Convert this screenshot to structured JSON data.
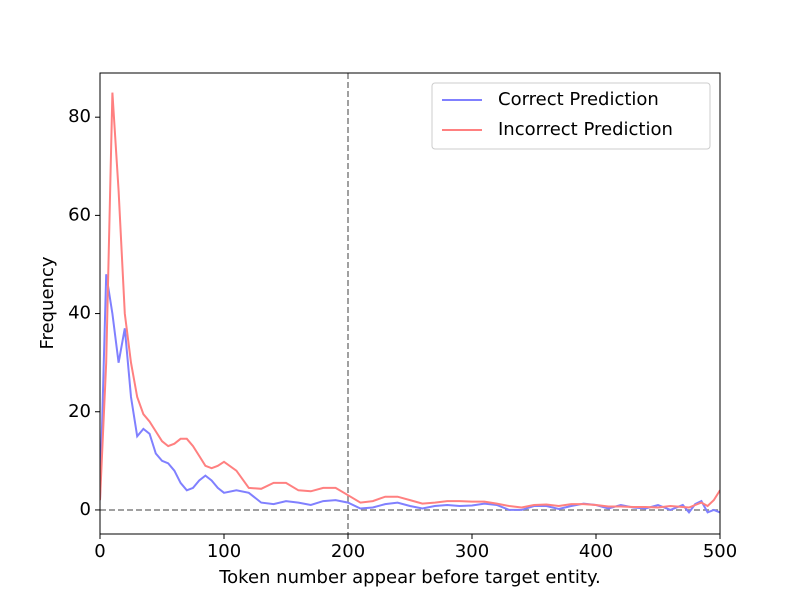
{
  "chart_data": {
    "type": "line",
    "x_label": "Token number appear before target entity.",
    "y_label": "Frequency",
    "x": [
      0,
      5,
      10,
      15,
      20,
      25,
      30,
      35,
      40,
      45,
      50,
      55,
      60,
      65,
      70,
      75,
      80,
      85,
      90,
      95,
      100,
      110,
      120,
      130,
      140,
      150,
      160,
      170,
      180,
      190,
      200,
      210,
      220,
      230,
      240,
      250,
      260,
      270,
      280,
      290,
      300,
      310,
      320,
      330,
      340,
      350,
      360,
      370,
      380,
      390,
      400,
      410,
      420,
      430,
      440,
      450,
      460,
      470,
      475,
      480,
      485,
      490,
      495,
      500
    ],
    "series": [
      {
        "name": "Correct Prediction",
        "color": "#8080ff",
        "values": [
          2,
          48,
          40,
          30,
          37,
          23,
          15,
          16.5,
          15.5,
          11.5,
          10,
          9.5,
          8,
          5.5,
          4,
          4.5,
          6,
          7,
          6,
          4.5,
          3.5,
          4,
          3.5,
          1.5,
          1.2,
          1.8,
          1.5,
          1,
          1.8,
          2,
          1.5,
          0.3,
          0.5,
          1.2,
          1.5,
          0.8,
          0.3,
          0.8,
          1,
          0.8,
          0.9,
          1.3,
          1,
          0,
          0,
          0.8,
          0.8,
          0.2,
          0.8,
          1.3,
          1,
          0.3,
          1,
          0.5,
          0.3,
          1,
          0,
          1,
          -0.5,
          1.2,
          1.8,
          -0.5,
          0,
          -0.5
        ]
      },
      {
        "name": "Incorrect Prediction",
        "color": "#ff8080",
        "values": [
          2,
          30,
          85,
          65,
          40,
          30,
          23,
          19.5,
          18,
          16,
          14,
          13,
          13.5,
          14.5,
          14.5,
          13,
          11,
          9,
          8.5,
          9,
          9.8,
          8,
          4.5,
          4.3,
          5.5,
          5.5,
          4,
          3.8,
          4.5,
          4.5,
          3,
          1.5,
          1.8,
          2.7,
          2.7,
          2,
          1.3,
          1.5,
          1.8,
          1.8,
          1.7,
          1.7,
          1.3,
          0.8,
          0.5,
          1,
          1.1,
          0.8,
          1.2,
          1.2,
          1,
          0.7,
          0.7,
          0.6,
          0.6,
          0.5,
          0.8,
          0.6,
          0.5,
          1,
          1.5,
          0.8,
          2,
          4
        ]
      }
    ],
    "xlim": [
      0,
      500
    ],
    "ylim": [
      -4.9,
      89
    ],
    "xticks": [
      0,
      100,
      200,
      300,
      400,
      500
    ],
    "yticks": [
      0,
      20,
      40,
      60,
      80
    ],
    "reference_lines": {
      "x": 200,
      "y": 0
    },
    "legend": "upper right"
  }
}
